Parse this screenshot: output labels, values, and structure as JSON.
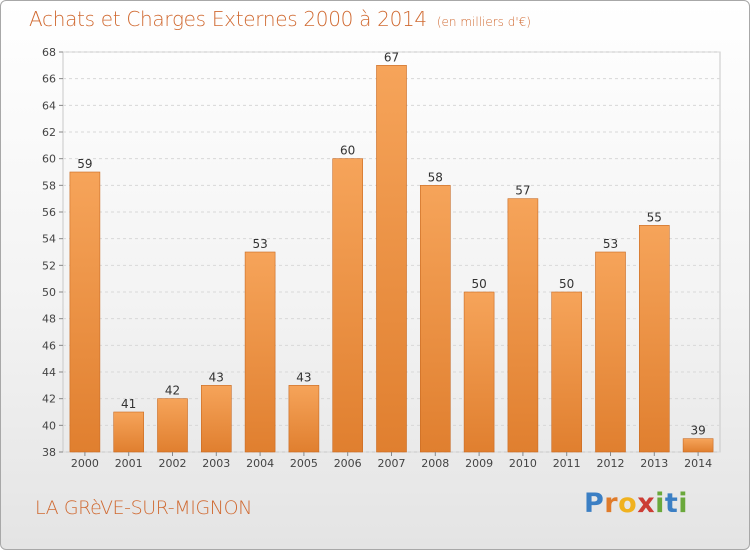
{
  "header": {
    "title": "Achats et Charges Externes 2000 à 2014",
    "unit": "(en milliers d'€)"
  },
  "footer": {
    "commune": "LA GRèVE-SUR-MIGNON"
  },
  "logo": {
    "letters": [
      "P",
      "r",
      "o",
      "x",
      "i",
      "t",
      "i"
    ],
    "colors": [
      "#3b7fc4",
      "#e07b2a",
      "#f0b21f",
      "#cc3d35",
      "#6aa83b",
      "#3b7fc4",
      "#6aa83b"
    ]
  },
  "colors": {
    "bar_fill_top": "#f6a45a",
    "bar_fill_bottom": "#e07f2f",
    "bar_stroke": "#c86a22",
    "title": "#d06a32",
    "gridline": "#d8d8d8"
  },
  "chart_data": {
    "type": "bar",
    "categories": [
      "2000",
      "2001",
      "2002",
      "2003",
      "2004",
      "2005",
      "2006",
      "2007",
      "2008",
      "2009",
      "2010",
      "2011",
      "2012",
      "2013",
      "2014"
    ],
    "values": [
      59,
      41,
      42,
      43,
      53,
      43,
      60,
      67,
      58,
      50,
      57,
      50,
      53,
      55,
      39
    ],
    "ylim": [
      38,
      68
    ],
    "yticks": [
      38,
      40,
      42,
      44,
      46,
      48,
      50,
      52,
      54,
      56,
      58,
      60,
      62,
      64,
      66,
      68
    ],
    "grid": true,
    "data_labels": true
  }
}
